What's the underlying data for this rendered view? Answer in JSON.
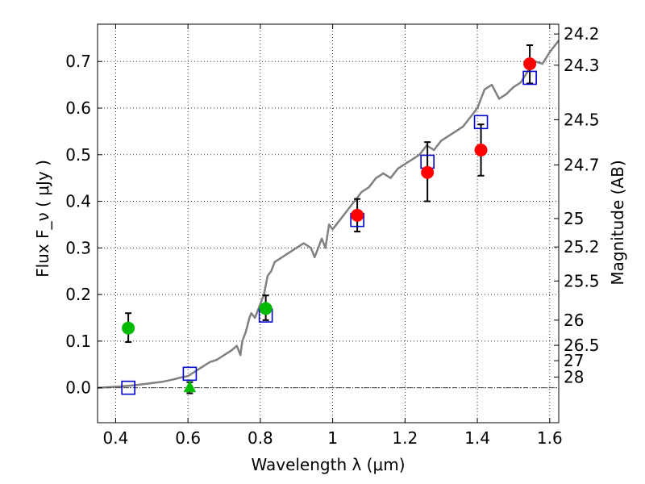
{
  "chart_data": {
    "type": "scatter",
    "xlabel": "Wavelength  λ (μm)",
    "ylabel": "Flux  F_ν  ( μJy )",
    "y2label": "Magnitude (AB)",
    "xlim": [
      0.35,
      1.625
    ],
    "ylim": [
      -0.075,
      0.78
    ],
    "grid": true,
    "x_ticks": [
      {
        "value": 0.4,
        "label": "0.4"
      },
      {
        "value": 0.6,
        "label": "0.6"
      },
      {
        "value": 0.8,
        "label": "0.8"
      },
      {
        "value": 1.0,
        "label": "1"
      },
      {
        "value": 1.2,
        "label": "1.2"
      },
      {
        "value": 1.4,
        "label": "1.4"
      },
      {
        "value": 1.6,
        "label": "1.6"
      }
    ],
    "y_ticks": [
      {
        "value": 0.0,
        "label": "0.0"
      },
      {
        "value": 0.1,
        "label": "0.1"
      },
      {
        "value": 0.2,
        "label": "0.2"
      },
      {
        "value": 0.3,
        "label": "0.3"
      },
      {
        "value": 0.4,
        "label": "0.4"
      },
      {
        "value": 0.5,
        "label": "0.5"
      },
      {
        "value": 0.6,
        "label": "0.6"
      },
      {
        "value": 0.7,
        "label": "0.7"
      }
    ],
    "y2_ticks": [
      {
        "flux": 0.759,
        "label": "24.2"
      },
      {
        "flux": 0.692,
        "label": "24.3"
      },
      {
        "flux": 0.575,
        "label": "24.5"
      },
      {
        "flux": 0.478,
        "label": "24.7"
      },
      {
        "flux": 0.363,
        "label": "25"
      },
      {
        "flux": 0.302,
        "label": "25.2"
      },
      {
        "flux": 0.229,
        "label": "25.5"
      },
      {
        "flux": 0.145,
        "label": "26"
      },
      {
        "flux": 0.091,
        "label": "26.5"
      },
      {
        "flux": 0.058,
        "label": "27"
      },
      {
        "flux": 0.023,
        "label": "28"
      }
    ],
    "model_curve": {
      "color": "#808080",
      "x": [
        0.35,
        0.4,
        0.45,
        0.5,
        0.53,
        0.56,
        0.58,
        0.6,
        0.62,
        0.64,
        0.66,
        0.68,
        0.7,
        0.72,
        0.735,
        0.745,
        0.75,
        0.76,
        0.77,
        0.775,
        0.785,
        0.8,
        0.81,
        0.82,
        0.83,
        0.84,
        0.86,
        0.88,
        0.9,
        0.92,
        0.94,
        0.95,
        0.97,
        0.98,
        0.99,
        1.0,
        1.02,
        1.04,
        1.06,
        1.08,
        1.1,
        1.12,
        1.14,
        1.16,
        1.18,
        1.2,
        1.22,
        1.24,
        1.26,
        1.28,
        1.3,
        1.32,
        1.34,
        1.36,
        1.38,
        1.4,
        1.42,
        1.44,
        1.46,
        1.48,
        1.5,
        1.52,
        1.54,
        1.56,
        1.58,
        1.6,
        1.625
      ],
      "y": [
        0.0,
        0.002,
        0.005,
        0.01,
        0.013,
        0.018,
        0.022,
        0.025,
        0.035,
        0.045,
        0.055,
        0.06,
        0.07,
        0.08,
        0.09,
        0.07,
        0.1,
        0.12,
        0.15,
        0.16,
        0.15,
        0.18,
        0.2,
        0.24,
        0.25,
        0.27,
        0.28,
        0.29,
        0.3,
        0.31,
        0.3,
        0.28,
        0.32,
        0.3,
        0.35,
        0.34,
        0.36,
        0.38,
        0.4,
        0.42,
        0.43,
        0.45,
        0.46,
        0.45,
        0.47,
        0.48,
        0.49,
        0.5,
        0.52,
        0.51,
        0.53,
        0.54,
        0.55,
        0.56,
        0.58,
        0.6,
        0.64,
        0.65,
        0.62,
        0.63,
        0.645,
        0.655,
        0.68,
        0.7,
        0.695,
        0.72,
        0.745
      ]
    },
    "series": [
      {
        "marker": "square-open",
        "color": "#0000cc",
        "x": [
          0.435,
          0.605,
          0.815,
          1.068,
          1.262,
          1.41,
          1.545
        ],
        "y": [
          0.0,
          0.03,
          0.155,
          0.36,
          0.485,
          0.57,
          0.665
        ]
      },
      {
        "marker": "circle",
        "color": "#ff0000",
        "x": [
          1.068,
          1.262,
          1.41,
          1.545
        ],
        "y": [
          0.37,
          0.462,
          0.51,
          0.695
        ],
        "yerr_low": [
          0.035,
          0.062,
          0.055,
          0.042
        ],
        "yerr_high": [
          0.035,
          0.065,
          0.055,
          0.04
        ]
      },
      {
        "marker": "circle",
        "color": "#00bb00",
        "x": [
          0.435,
          0.815
        ],
        "y": [
          0.128,
          0.17
        ],
        "yerr_low": [
          0.03,
          0.025
        ],
        "yerr_high": [
          0.032,
          0.028
        ]
      },
      {
        "marker": "triangle",
        "color": "#00bb00",
        "x": [
          0.605
        ],
        "y": [
          0.0
        ],
        "yerr_low": [
          0.012
        ],
        "yerr_high": [
          0.012
        ]
      }
    ]
  }
}
